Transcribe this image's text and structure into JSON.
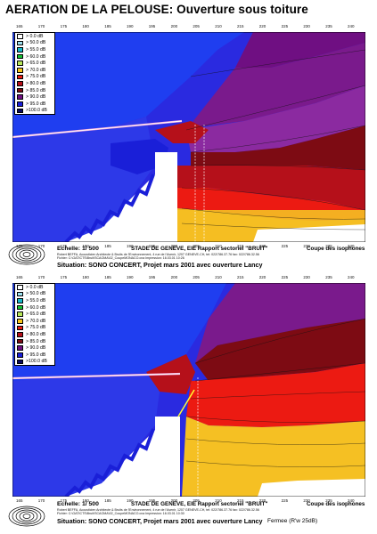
{
  "title": "AERATION DE LA PELOUSE: Ouverture sous toiture",
  "legend": [
    {
      "label": ">  0.0 dB",
      "color": "#ffffff"
    },
    {
      "label": ">  50.0 dB",
      "color": "#9fe0f0"
    },
    {
      "label": ">  55.0 dB",
      "color": "#16b7c9"
    },
    {
      "label": ">  60.0 dB",
      "color": "#15c434"
    },
    {
      "label": ">  65.0 dB",
      "color": "#b6e65a"
    },
    {
      "label": ">  70.0 dB",
      "color": "#f7c51a"
    },
    {
      "label": ">  75.0 dB",
      "color": "#ec1a12"
    },
    {
      "label": ">  80.0 dB",
      "color": "#b5101a"
    },
    {
      "label": ">  85.0 dB",
      "color": "#7d0b13"
    },
    {
      "label": ">  90.0 dB",
      "color": "#6f0f82"
    },
    {
      "label": ">  95.0 dB",
      "color": "#1a1fd8"
    },
    {
      "label": ">100.0 dB",
      "color": "#0a0a60"
    }
  ],
  "x_ticks": [
    "165",
    "170",
    "175",
    "180",
    "185",
    "190",
    "195",
    "200",
    "205",
    "210",
    "215",
    "220",
    "225",
    "230",
    "235",
    "240"
  ],
  "panels": [
    {
      "echelle": "Echelle: 1/ 500",
      "stade": "STADE DE GENEVE, EIE Rapport sectoriel \"BRUIT\"",
      "coupe": "Coupe des isophones",
      "address": "Robert BEFFA, Acousticien Architecte & Bruits de l'Environnement, 4 rue de l'Avenir, 1207 GENEVE-CH, tel: 022/786.37.76 fax: 022/786.32.56",
      "fichier": "Fichier:  C:\\GATICTS\\Bruit\\SCAOMA\\02_CoupeMONACO.cna              Impression:   16.03.01  10:26",
      "situation": "Situation: SONO CONCERT, Projet mars 2001 avec ouverture Lancy",
      "fermee": ""
    },
    {
      "echelle": "Echelle: 1/ 500",
      "stade": "STADE DE GENEVE, EIE Rapport sectoriel \"BRUIT\"",
      "coupe": "Coupe des isophones",
      "address": "Robert BEFFA, Acousticien Architecte & Bruits de l'Environnement, 4 rue de l'Avenir, 1207 GENEVE-CH, tel: 022/786.37.76 fax: 022/786.32.56",
      "fichier": "Fichier:  C:\\GATICTS\\Bruit\\SCAOMA\\02_CoupeMONACO.cna              Impression:   16.03.01  10:30",
      "situation": "Situation: SONO CONCERT, Projet mars 2001 avec ouverture Lancy",
      "fermee": "Fermee (R'w 25dB)"
    }
  ]
}
